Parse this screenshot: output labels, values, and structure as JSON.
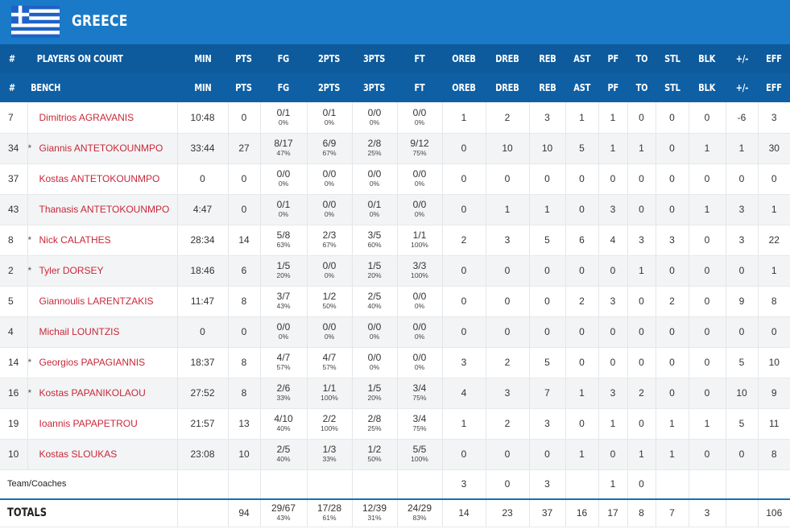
{
  "team": {
    "name": "GREECE",
    "flag_colors": {
      "blue": "#1e62c8",
      "white": "#ffffff"
    }
  },
  "header_on_court": [
    "#",
    "PLAYERS ON COURT",
    "MIN",
    "PTS",
    "FG",
    "2PTS",
    "3PTS",
    "FT",
    "OREB",
    "DREB",
    "REB",
    "AST",
    "PF",
    "TO",
    "STL",
    "BLK",
    "+/-",
    "EFF"
  ],
  "header_bench": [
    "#",
    "BENCH",
    "MIN",
    "PTS",
    "FG",
    "2PTS",
    "3PTS",
    "FT",
    "OREB",
    "DREB",
    "REB",
    "AST",
    "PF",
    "TO",
    "STL",
    "BLK",
    "+/-",
    "EFF"
  ],
  "players": [
    {
      "num": "7",
      "starter": false,
      "name": "Dimitrios AGRAVANIS",
      "min": "10:48",
      "pts": "0",
      "fg": [
        "0/1",
        "0%"
      ],
      "p2": [
        "0/1",
        "0%"
      ],
      "p3": [
        "0/0",
        "0%"
      ],
      "ft": [
        "0/0",
        "0%"
      ],
      "oreb": "1",
      "dreb": "2",
      "reb": "3",
      "ast": "1",
      "pf": "1",
      "to": "0",
      "stl": "0",
      "blk": "0",
      "pm": "-6",
      "eff": "3"
    },
    {
      "num": "34",
      "starter": true,
      "name": "Giannis ANTETOKOUNMPO",
      "min": "33:44",
      "pts": "27",
      "fg": [
        "8/17",
        "47%"
      ],
      "p2": [
        "6/9",
        "67%"
      ],
      "p3": [
        "2/8",
        "25%"
      ],
      "ft": [
        "9/12",
        "75%"
      ],
      "oreb": "0",
      "dreb": "10",
      "reb": "10",
      "ast": "5",
      "pf": "1",
      "to": "1",
      "stl": "0",
      "blk": "1",
      "pm": "1",
      "eff": "30"
    },
    {
      "num": "37",
      "starter": false,
      "name": "Kostas ANTETOKOUNMPO",
      "min": "0",
      "pts": "0",
      "fg": [
        "0/0",
        "0%"
      ],
      "p2": [
        "0/0",
        "0%"
      ],
      "p3": [
        "0/0",
        "0%"
      ],
      "ft": [
        "0/0",
        "0%"
      ],
      "oreb": "0",
      "dreb": "0",
      "reb": "0",
      "ast": "0",
      "pf": "0",
      "to": "0",
      "stl": "0",
      "blk": "0",
      "pm": "0",
      "eff": "0"
    },
    {
      "num": "43",
      "starter": false,
      "name": "Thanasis ANTETOKOUNMPO",
      "min": "4:47",
      "pts": "0",
      "fg": [
        "0/1",
        "0%"
      ],
      "p2": [
        "0/0",
        "0%"
      ],
      "p3": [
        "0/1",
        "0%"
      ],
      "ft": [
        "0/0",
        "0%"
      ],
      "oreb": "0",
      "dreb": "1",
      "reb": "1",
      "ast": "0",
      "pf": "3",
      "to": "0",
      "stl": "0",
      "blk": "1",
      "pm": "3",
      "eff": "1"
    },
    {
      "num": "8",
      "starter": true,
      "name": "Nick CALATHES",
      "min": "28:34",
      "pts": "14",
      "fg": [
        "5/8",
        "63%"
      ],
      "p2": [
        "2/3",
        "67%"
      ],
      "p3": [
        "3/5",
        "60%"
      ],
      "ft": [
        "1/1",
        "100%"
      ],
      "oreb": "2",
      "dreb": "3",
      "reb": "5",
      "ast": "6",
      "pf": "4",
      "to": "3",
      "stl": "3",
      "blk": "0",
      "pm": "3",
      "eff": "22"
    },
    {
      "num": "2",
      "starter": true,
      "name": "Tyler DORSEY",
      "min": "18:46",
      "pts": "6",
      "fg": [
        "1/5",
        "20%"
      ],
      "p2": [
        "0/0",
        "0%"
      ],
      "p3": [
        "1/5",
        "20%"
      ],
      "ft": [
        "3/3",
        "100%"
      ],
      "oreb": "0",
      "dreb": "0",
      "reb": "0",
      "ast": "0",
      "pf": "0",
      "to": "1",
      "stl": "0",
      "blk": "0",
      "pm": "0",
      "eff": "1"
    },
    {
      "num": "5",
      "starter": false,
      "name": "Giannoulis LARENTZAKIS",
      "min": "11:47",
      "pts": "8",
      "fg": [
        "3/7",
        "43%"
      ],
      "p2": [
        "1/2",
        "50%"
      ],
      "p3": [
        "2/5",
        "40%"
      ],
      "ft": [
        "0/0",
        "0%"
      ],
      "oreb": "0",
      "dreb": "0",
      "reb": "0",
      "ast": "2",
      "pf": "3",
      "to": "0",
      "stl": "2",
      "blk": "0",
      "pm": "9",
      "eff": "8"
    },
    {
      "num": "4",
      "starter": false,
      "name": "Michail LOUNTZIS",
      "min": "0",
      "pts": "0",
      "fg": [
        "0/0",
        "0%"
      ],
      "p2": [
        "0/0",
        "0%"
      ],
      "p3": [
        "0/0",
        "0%"
      ],
      "ft": [
        "0/0",
        "0%"
      ],
      "oreb": "0",
      "dreb": "0",
      "reb": "0",
      "ast": "0",
      "pf": "0",
      "to": "0",
      "stl": "0",
      "blk": "0",
      "pm": "0",
      "eff": "0"
    },
    {
      "num": "14",
      "starter": true,
      "name": "Georgios PAPAGIANNIS",
      "min": "18:37",
      "pts": "8",
      "fg": [
        "4/7",
        "57%"
      ],
      "p2": [
        "4/7",
        "57%"
      ],
      "p3": [
        "0/0",
        "0%"
      ],
      "ft": [
        "0/0",
        "0%"
      ],
      "oreb": "3",
      "dreb": "2",
      "reb": "5",
      "ast": "0",
      "pf": "0",
      "to": "0",
      "stl": "0",
      "blk": "0",
      "pm": "5",
      "eff": "10"
    },
    {
      "num": "16",
      "starter": true,
      "name": "Kostas PAPANIKOLAOU",
      "min": "27:52",
      "pts": "8",
      "fg": [
        "2/6",
        "33%"
      ],
      "p2": [
        "1/1",
        "100%"
      ],
      "p3": [
        "1/5",
        "20%"
      ],
      "ft": [
        "3/4",
        "75%"
      ],
      "oreb": "4",
      "dreb": "3",
      "reb": "7",
      "ast": "1",
      "pf": "3",
      "to": "2",
      "stl": "0",
      "blk": "0",
      "pm": "10",
      "eff": "9"
    },
    {
      "num": "19",
      "starter": false,
      "name": "Ioannis PAPAPETROU",
      "min": "21:57",
      "pts": "13",
      "fg": [
        "4/10",
        "40%"
      ],
      "p2": [
        "2/2",
        "100%"
      ],
      "p3": [
        "2/8",
        "25%"
      ],
      "ft": [
        "3/4",
        "75%"
      ],
      "oreb": "1",
      "dreb": "2",
      "reb": "3",
      "ast": "0",
      "pf": "1",
      "to": "0",
      "stl": "1",
      "blk": "1",
      "pm": "5",
      "eff": "11"
    },
    {
      "num": "10",
      "starter": false,
      "name": "Kostas SLOUKAS",
      "min": "23:08",
      "pts": "10",
      "fg": [
        "2/5",
        "40%"
      ],
      "p2": [
        "1/3",
        "33%"
      ],
      "p3": [
        "1/2",
        "50%"
      ],
      "ft": [
        "5/5",
        "100%"
      ],
      "oreb": "0",
      "dreb": "0",
      "reb": "0",
      "ast": "1",
      "pf": "0",
      "to": "1",
      "stl": "1",
      "blk": "0",
      "pm": "0",
      "eff": "8"
    }
  ],
  "starter_mark": "*",
  "team_coaches": {
    "label": "Team/Coaches",
    "oreb": "3",
    "dreb": "0",
    "reb": "3",
    "pf": "1",
    "to": "0"
  },
  "totals": {
    "label": "TOTALS",
    "pts": "94",
    "fg": [
      "29/67",
      "43%"
    ],
    "p2": [
      "17/28",
      "61%"
    ],
    "p3": [
      "12/39",
      "31%"
    ],
    "ft": [
      "24/29",
      "83%"
    ],
    "oreb": "14",
    "dreb": "23",
    "reb": "37",
    "ast": "16",
    "pf": "17",
    "to": "8",
    "stl": "7",
    "blk": "3",
    "eff": "106"
  }
}
